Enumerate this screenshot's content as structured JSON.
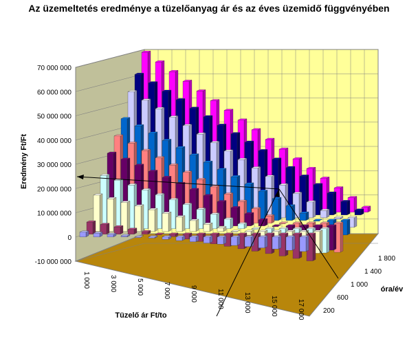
{
  "chart_data": {
    "type": "bar",
    "subtype": "3d-column",
    "title": "Az üzemeltetés eredménye a tüzelőanyag ár és az éves üzemidő függvényében",
    "xlabel": "Tüzelő ár Ft/to",
    "ylabel": "óra/év",
    "zlabel": "Eredmény Ft/Ft",
    "x_tick_labels": [
      "1 000",
      "3 000",
      "5 000",
      "7 000",
      "9 000",
      "11 000",
      "13 000",
      "15 000",
      "17 000"
    ],
    "y_tick_labels": [
      "200",
      "600",
      "1 000",
      "1 400",
      "1 800"
    ],
    "z_tick_labels": [
      "-10 000 000",
      "0",
      "10 000 000",
      "20 000 000",
      "30 000 000",
      "40 000 000",
      "50 000 000",
      "60 000 000",
      "70 000 000"
    ],
    "zlim": [
      -10000000,
      70000000
    ],
    "x_values": [
      1000,
      2000,
      3000,
      4000,
      5000,
      6000,
      7000,
      8000,
      9000,
      10000,
      11000,
      12000,
      13000,
      14000,
      15000,
      16000,
      17000
    ],
    "series_colors": [
      "#9999ff",
      "#993366",
      "#ffffcc",
      "#ccffff",
      "#660066",
      "#ff8080",
      "#0066cc",
      "#ccccff",
      "#000080",
      "#ff00ff",
      "#ffff00",
      "#00ffff"
    ],
    "series": [
      {
        "hours": 200,
        "values": [
          2000000,
          1500000,
          1000000,
          500000,
          0,
          -500000,
          -1000000,
          -1500000,
          -2000000,
          -2500000,
          -3000000,
          -3500000,
          -4000000,
          -4500000,
          -5000000,
          -5500000,
          -6000000
        ]
      },
      {
        "hours": 400,
        "values": [
          5000000,
          4000000,
          3000000,
          2000000,
          1000000,
          0,
          -1000000,
          -2000000,
          -3000000,
          -4000000,
          -5000000,
          -6000000,
          -7000000,
          -8000000,
          -9000000,
          -10000000,
          -11000000
        ]
      },
      {
        "hours": 600,
        "values": [
          15000000,
          13500000,
          12000000,
          10500000,
          9000000,
          7500000,
          6000000,
          4500000,
          3000000,
          1500000,
          0,
          -1500000,
          -3000000,
          -4500000,
          -6000000,
          -7500000,
          -9000000
        ]
      },
      {
        "hours": 800,
        "values": [
          22000000,
          20000000,
          18000000,
          16000000,
          14000000,
          12000000,
          10000000,
          8000000,
          6000000,
          4000000,
          2000000,
          0,
          -2000000,
          -4000000,
          -6000000,
          -8000000,
          -10000000
        ]
      },
      {
        "hours": 1000,
        "values": [
          30000000,
          27500000,
          25000000,
          22500000,
          20000000,
          17500000,
          15000000,
          12500000,
          10000000,
          7500000,
          5000000,
          2500000,
          0,
          -2500000,
          -5000000,
          -7500000,
          -10000000
        ]
      },
      {
        "hours": 1200,
        "values": [
          36000000,
          33000000,
          30000000,
          27000000,
          24000000,
          21000000,
          18000000,
          15000000,
          12000000,
          9000000,
          6000000,
          3000000,
          0,
          -3000000,
          -6000000,
          -9000000,
          -12000000
        ]
      },
      {
        "hours": 1400,
        "values": [
          42000000,
          39000000,
          36000000,
          33000000,
          30000000,
          27000000,
          24000000,
          21000000,
          18000000,
          15000000,
          12000000,
          9000000,
          6000000,
          3000000,
          0,
          -3000000,
          -6000000
        ]
      },
      {
        "hours": 1600,
        "values": [
          52000000,
          48500000,
          45000000,
          41500000,
          38000000,
          34500000,
          31000000,
          27500000,
          24000000,
          20500000,
          17000000,
          13500000,
          10000000,
          6500000,
          3000000,
          -500000,
          -4000000
        ]
      },
      {
        "hours": 1800,
        "values": [
          58000000,
          54500000,
          51000000,
          47500000,
          44000000,
          40500000,
          37000000,
          33500000,
          30000000,
          26500000,
          23000000,
          19500000,
          16000000,
          12500000,
          9000000,
          5500000,
          2000000
        ]
      },
      {
        "hours": 2000,
        "values": [
          66000000,
          62000000,
          58000000,
          54000000,
          50000000,
          46000000,
          42000000,
          38000000,
          34000000,
          30000000,
          26000000,
          22000000,
          18000000,
          14000000,
          10000000,
          6000000,
          2000000
        ]
      }
    ],
    "grid": true,
    "legend": "none"
  }
}
